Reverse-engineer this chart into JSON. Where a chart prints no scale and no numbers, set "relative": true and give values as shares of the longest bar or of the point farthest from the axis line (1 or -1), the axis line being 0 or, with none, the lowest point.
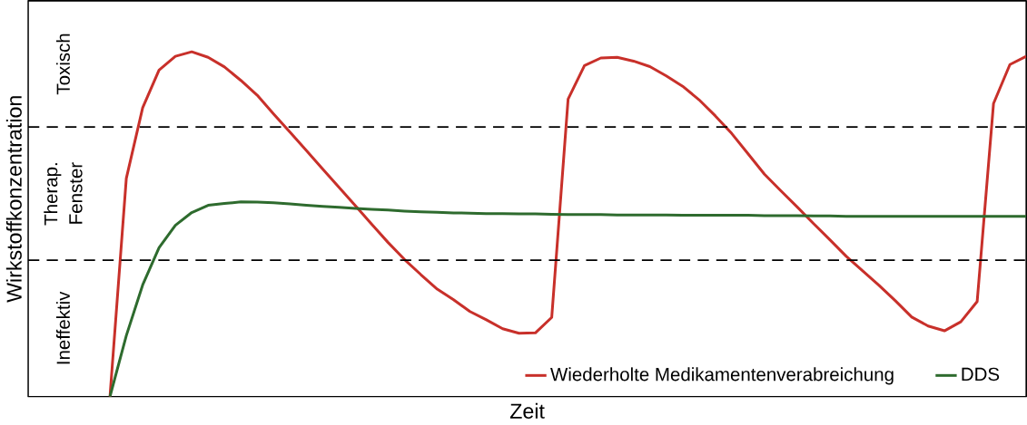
{
  "chart_data": {
    "type": "line",
    "relative": true,
    "xlabel": "Zeit",
    "ylabel": "Wirkstoffkonzentration",
    "legend": "bottom right",
    "tick_labels": false,
    "categories": [
      null,
      null,
      null,
      null,
      null,
      null,
      null,
      null,
      null,
      null,
      null,
      null,
      null,
      null,
      null,
      null,
      null,
      null,
      null,
      null,
      null,
      null,
      null,
      null,
      null,
      null,
      null,
      null,
      null,
      null,
      null,
      null,
      null,
      null,
      null,
      null,
      null,
      null,
      null,
      null,
      null,
      null,
      null,
      null,
      null,
      null,
      null,
      null,
      null,
      null,
      null,
      null,
      null,
      null,
      null,
      null,
      null,
      null,
      null,
      null,
      null,
      null
    ],
    "series": [
      {
        "name": "Wiederholte Medikamentenverabreichung",
        "color": "#c8302a",
        "values": [
          null,
          null,
          null,
          null,
          null,
          0,
          0.633,
          0.838,
          0.947,
          0.987,
          1,
          0.984,
          0.956,
          0.917,
          0.874,
          0.82,
          0.767,
          0.714,
          0.66,
          0.607,
          0.554,
          0.5,
          0.447,
          0.398,
          0.354,
          0.312,
          0.281,
          0.247,
          0.223,
          0.197,
          0.184,
          0.185,
          0.23,
          0.863,
          0.96,
          0.982,
          0.984,
          0.973,
          0.957,
          0.93,
          0.9,
          0.861,
          0.814,
          0.763,
          0.704,
          0.645,
          0.597,
          0.55,
          0.502,
          0.455,
          0.407,
          0.365,
          0.323,
          0.278,
          0.231,
          0.205,
          0.191,
          0.217,
          0.276,
          0.85,
          0.963,
          0.987
        ]
      },
      {
        "name": "DDS",
        "color": "#2e6b2e",
        "values": [
          null,
          null,
          null,
          null,
          null,
          0,
          0.177,
          0.324,
          0.432,
          0.497,
          0.534,
          0.555,
          0.56,
          0.565,
          0.564,
          0.562,
          0.559,
          0.555,
          0.552,
          0.549,
          0.546,
          0.543,
          0.541,
          0.538,
          0.536,
          0.535,
          0.533,
          0.532,
          0.531,
          0.531,
          0.53,
          0.53,
          0.529,
          0.528,
          0.528,
          0.528,
          0.527,
          0.527,
          0.527,
          0.527,
          0.526,
          0.526,
          0.526,
          0.526,
          0.526,
          0.525,
          0.525,
          0.525,
          0.524,
          0.524,
          0.523,
          0.523,
          0.523,
          0.523,
          0.523,
          0.523,
          0.523,
          0.523,
          0.523,
          0.523,
          0.523,
          0.523
        ]
      }
    ],
    "ref_lines": [
      {
        "axis": "y",
        "value": 0.782,
        "color": "#000000",
        "line_style": "dashed"
      },
      {
        "axis": "y",
        "value": 0.396,
        "color": "#000000",
        "line_style": "dashed"
      }
    ],
    "annotations": [
      "Toxisch",
      "Therap. Fenster",
      "Ineffektiv"
    ]
  }
}
